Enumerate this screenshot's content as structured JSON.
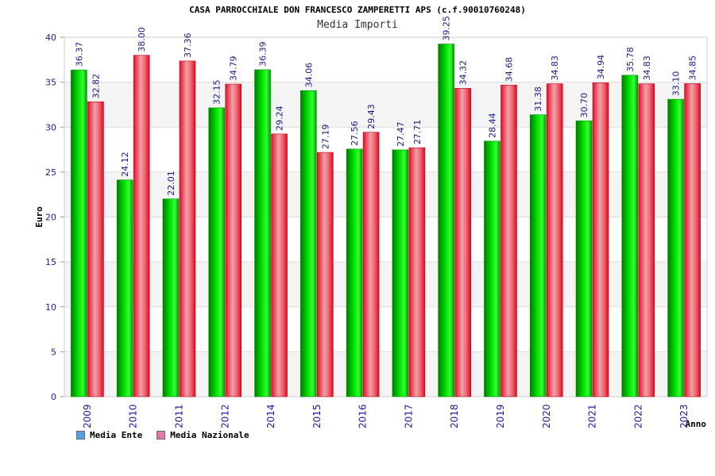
{
  "chart_data": {
    "type": "bar",
    "title": "CASA PARROCCHIALE DON FRANCESCO ZAMPERETTI APS (c.f.90010760248)",
    "subtitle": "Media Importi",
    "xlabel": "Anno",
    "ylabel": "Euro",
    "ylim": [
      0,
      40
    ],
    "yticks": [
      0,
      5,
      10,
      15,
      20,
      25,
      30,
      35,
      40
    ],
    "categories": [
      "2009",
      "2010",
      "2011",
      "2012",
      "2014",
      "2015",
      "2016",
      "2017",
      "2018",
      "2019",
      "2020",
      "2021",
      "2022",
      "2023"
    ],
    "series": [
      {
        "name": "Media Ente",
        "color": "#00c800",
        "values": [
          36.37,
          24.12,
          22.01,
          32.15,
          36.39,
          34.06,
          27.56,
          27.47,
          39.25,
          28.44,
          31.38,
          30.7,
          35.78,
          33.1
        ],
        "labels": [
          "36.37",
          "24.12",
          "22.01",
          "32.15",
          "36.39",
          "34.06",
          "27.56",
          "27.47",
          "39.25",
          "28.44",
          "31.38",
          "30.70",
          "35.78",
          "33.10"
        ]
      },
      {
        "name": "Media Nazionale",
        "color": "#ee2233",
        "values": [
          32.82,
          38.0,
          37.36,
          34.79,
          29.24,
          27.19,
          29.43,
          27.71,
          34.32,
          34.68,
          34.83,
          34.94,
          34.83,
          34.85
        ],
        "labels": [
          "32.82",
          "38.00",
          "37.36",
          "34.79",
          "29.24",
          "27.19",
          "29.43",
          "27.71",
          "34.32",
          "34.68",
          "34.83",
          "34.94",
          "34.83",
          "34.85"
        ]
      }
    ],
    "legend": [
      {
        "label": "Media Ente",
        "color": "#5aa0e6"
      },
      {
        "label": "Media Nazionale",
        "color": "#e07aa8"
      }
    ],
    "grid": true,
    "legend_position": "bottom-left"
  }
}
